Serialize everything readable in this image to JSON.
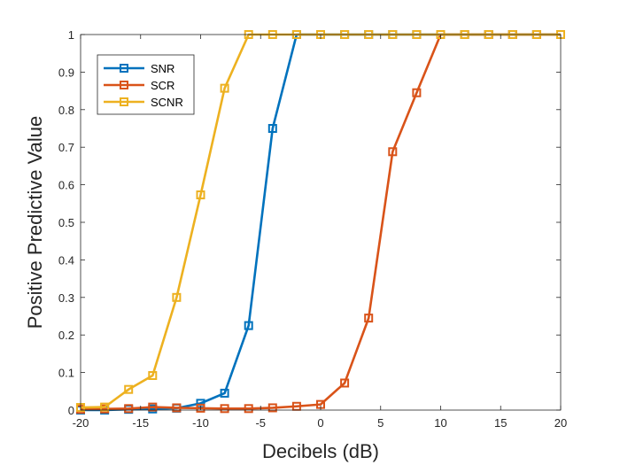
{
  "chart_data": {
    "type": "line",
    "title": "",
    "xlabel": "Decibels (dB)",
    "ylabel": "Positive Predictive Value",
    "xlim": [
      -20,
      20
    ],
    "ylim": [
      0,
      1
    ],
    "xticks": [
      -20,
      -15,
      -10,
      -5,
      0,
      5,
      10,
      15,
      20
    ],
    "yticks": [
      0,
      0.1,
      0.2,
      0.3,
      0.4,
      0.5,
      0.6,
      0.7,
      0.8,
      0.9,
      1
    ],
    "xtick_labels": [
      "-20",
      "-15",
      "-10",
      "-5",
      "0",
      "5",
      "10",
      "15",
      "20"
    ],
    "ytick_labels": [
      "0",
      "0.1",
      "0.2",
      "0.3",
      "0.4",
      "0.5",
      "0.6",
      "0.7",
      "0.8",
      "0.9",
      "1"
    ],
    "grid": false,
    "legend_position": "top-left",
    "marker": "square",
    "x": [
      -20,
      -18,
      -16,
      -14,
      -12,
      -10,
      -8,
      -6,
      -4,
      -2,
      0,
      2,
      4,
      6,
      8,
      10,
      12,
      14,
      16,
      18,
      20
    ],
    "series": [
      {
        "name": "SNR",
        "color": "#0072BD",
        "values": [
          0.0,
          0.0,
          0.002,
          0.003,
          0.005,
          0.018,
          0.045,
          0.225,
          0.75,
          1,
          1,
          1,
          1,
          1,
          1,
          1,
          1,
          1,
          1,
          1,
          1
        ]
      },
      {
        "name": "SCR",
        "color": "#D95319",
        "values": [
          0.002,
          0.003,
          0.004,
          0.008,
          0.006,
          0.005,
          0.004,
          0.004,
          0.006,
          0.01,
          0.015,
          0.072,
          0.245,
          0.688,
          0.845,
          1,
          1,
          1,
          1,
          1,
          1
        ]
      },
      {
        "name": "SCNR",
        "color": "#EDB120",
        "values": [
          0.007,
          0.008,
          0.055,
          0.092,
          0.3,
          0.573,
          0.857,
          1,
          1,
          1,
          1,
          1,
          1,
          1,
          1,
          1,
          1,
          1,
          1,
          1,
          1
        ]
      }
    ]
  }
}
